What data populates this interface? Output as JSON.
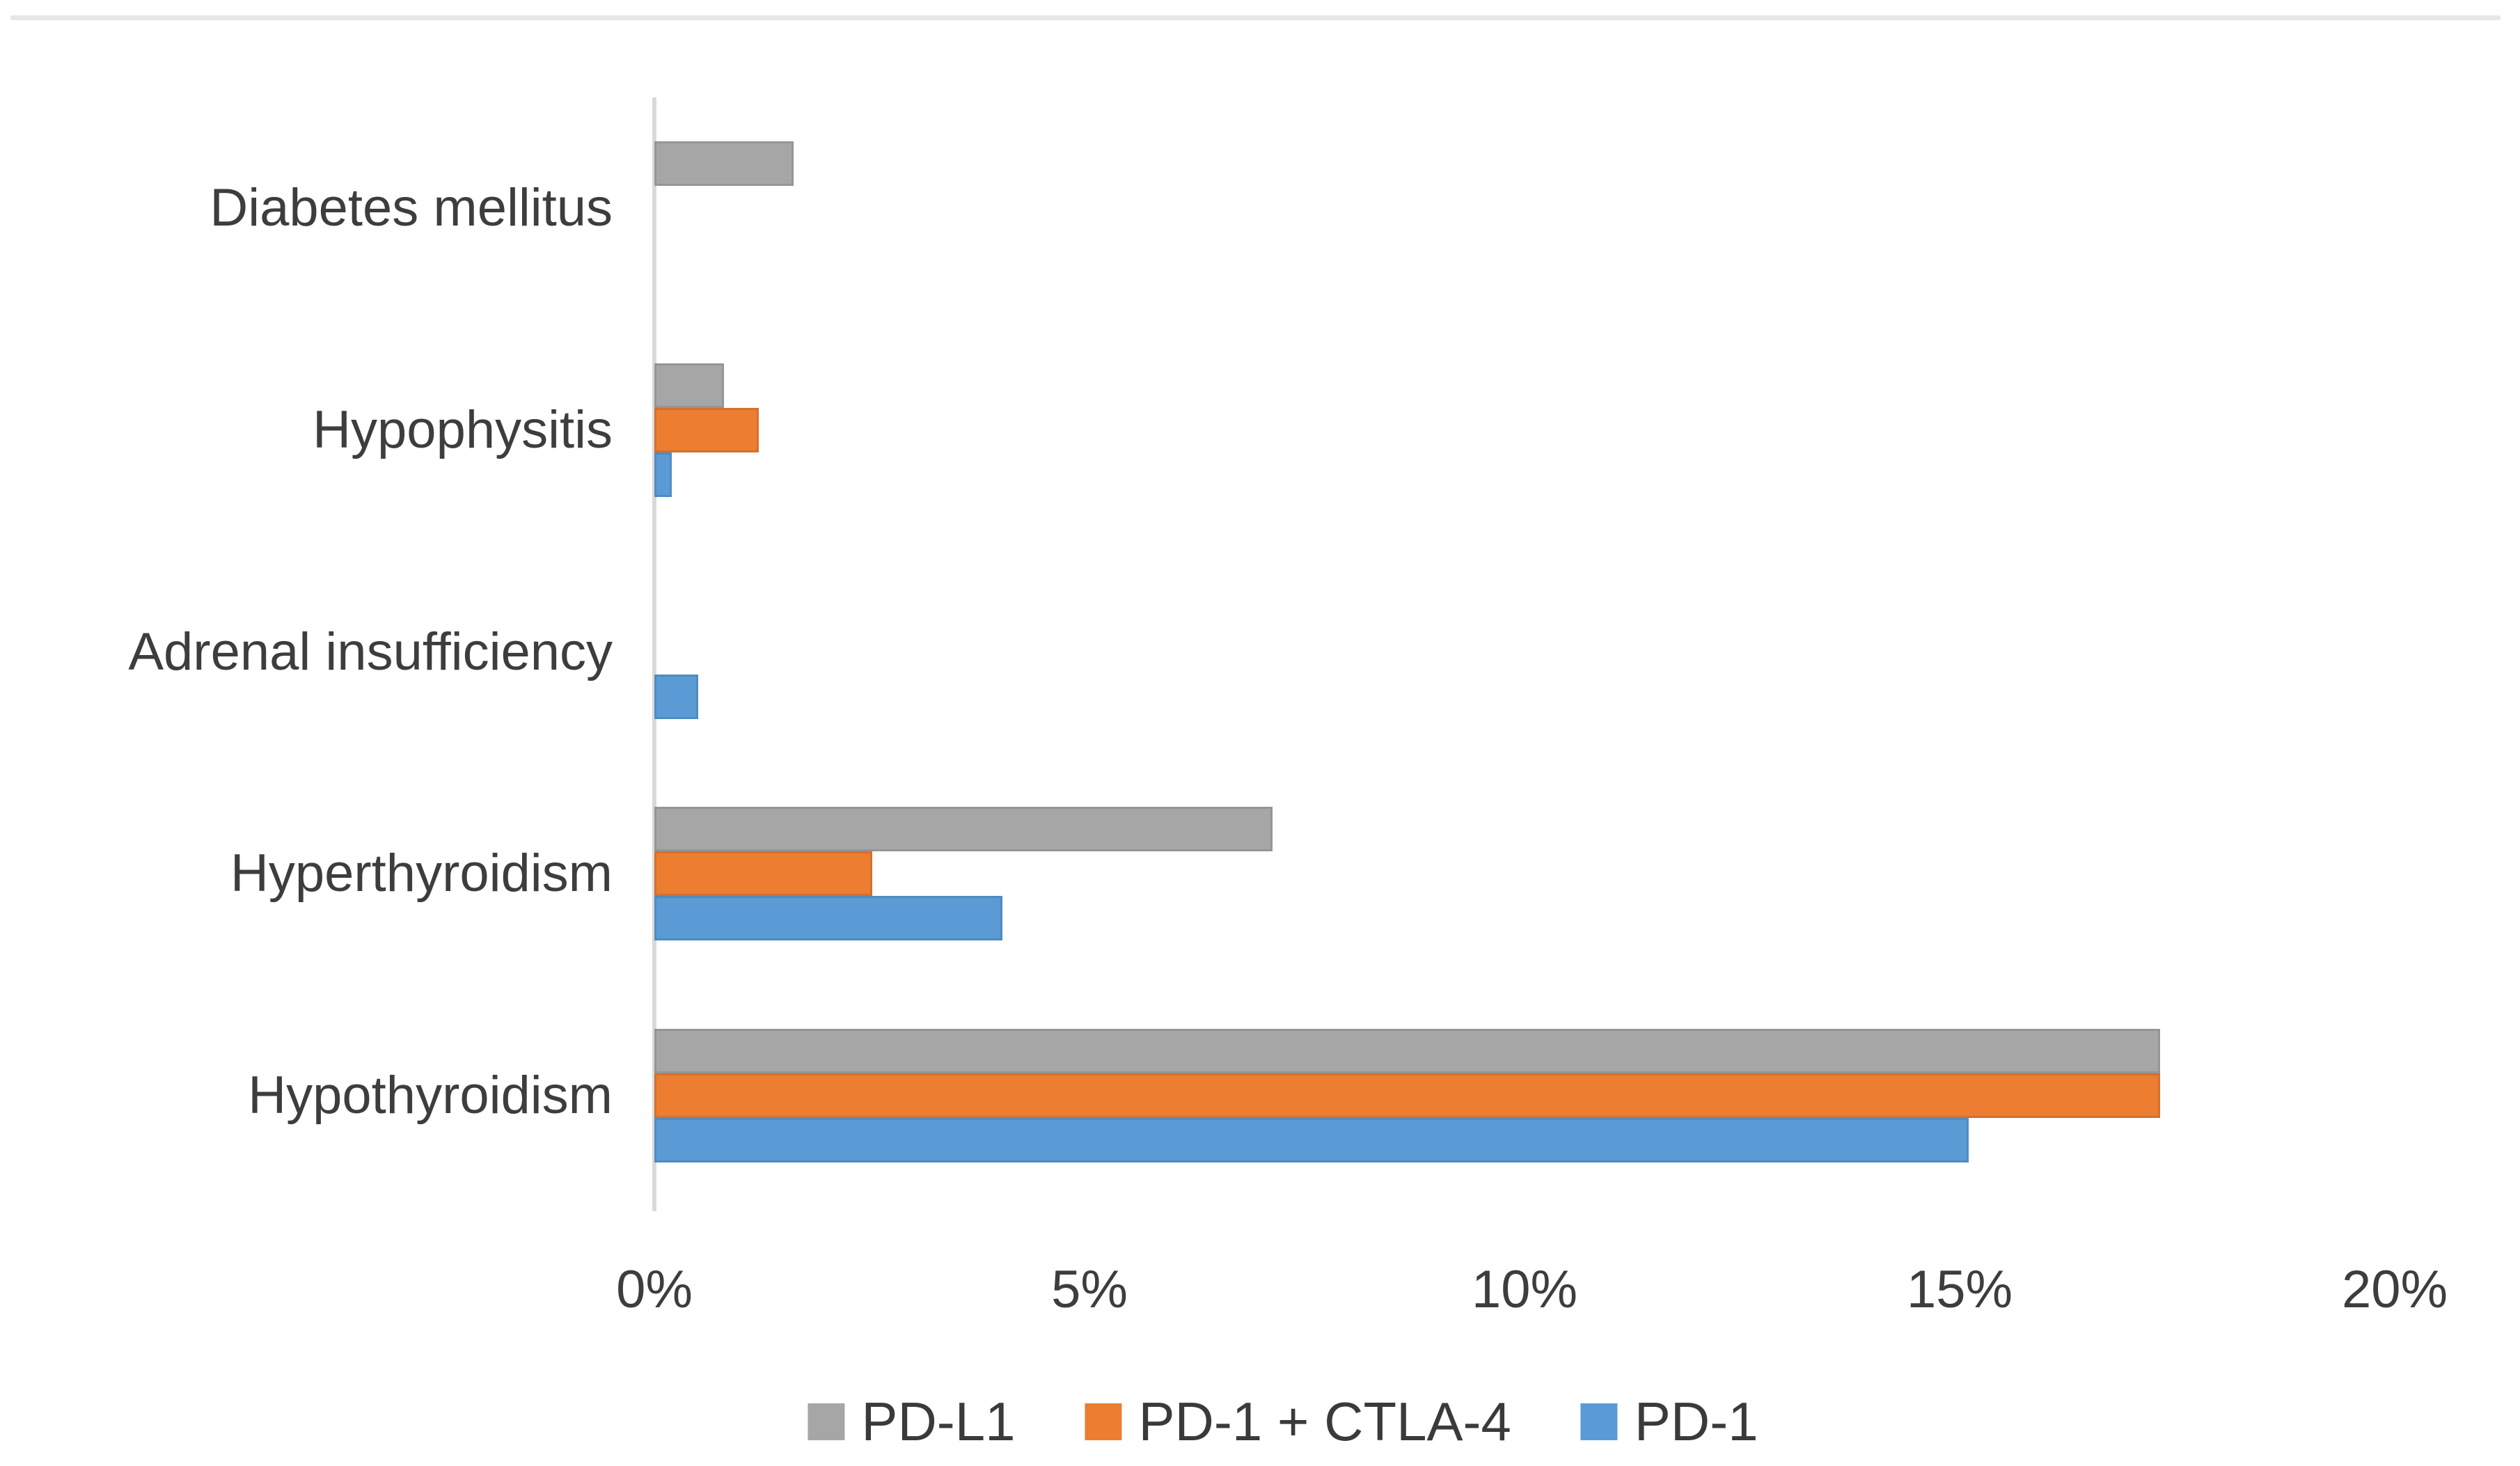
{
  "page": {
    "background": "#ffffff",
    "divider_color": "#e6e6e6"
  },
  "chart_data": {
    "type": "bar",
    "orientation": "horizontal",
    "title": "",
    "xlabel": "",
    "ylabel": "",
    "categories": [
      "Diabetes mellitus",
      "Hypophysitis",
      "Adrenal insufficiency",
      "Hyperthyroidism",
      "Hypothyroidism"
    ],
    "series": [
      {
        "name": "PD-L1",
        "color": "#A6A6A6",
        "values": [
          1.6,
          0.8,
          0,
          7.1,
          17.3
        ]
      },
      {
        "name": "PD-1 + CTLA-4",
        "color": "#ED7D31",
        "values": [
          0,
          1.2,
          0,
          2.5,
          17.3
        ]
      },
      {
        "name": "PD-1",
        "color": "#5B9BD5",
        "values": [
          0,
          0.2,
          0.5,
          4.0,
          15.1
        ]
      }
    ],
    "x_axis": {
      "unit": "%",
      "min": 0,
      "max": 20,
      "tick_values": [
        0,
        5,
        10,
        15,
        20
      ],
      "ticks": [
        "0%",
        "5%",
        "10%",
        "15%",
        "20%"
      ]
    },
    "grid": false,
    "legend_position": "bottom",
    "axis_line_color": "#d9d9d9",
    "text_color": "#3d3d3d"
  }
}
